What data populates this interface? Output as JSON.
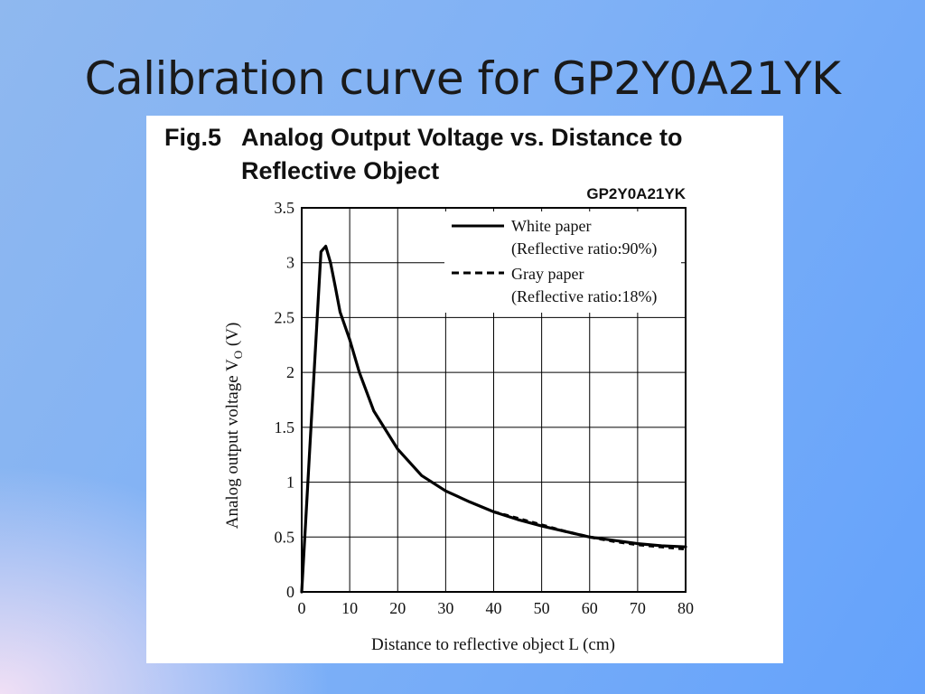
{
  "slide": {
    "title": "Calibration curve for GP2Y0A21YK"
  },
  "figure": {
    "fig_number": "Fig.5",
    "title_line1": "Analog Output Voltage vs. Distance to",
    "title_line2": "Reflective Object",
    "model": "GP2Y0A21YK"
  },
  "chart_data": {
    "type": "line",
    "title": "Fig.5 Analog Output Voltage vs. Distance to Reflective Object",
    "subtitle": "GP2Y0A21YK",
    "xlabel": "Distance to reflective object L (cm)",
    "ylabel": "Analog output voltage V",
    "ylabel_subscript": "O",
    "ylabel_unit": " (V)",
    "xlim": [
      0,
      80
    ],
    "ylim": [
      0,
      3.5
    ],
    "x_ticks": [
      0,
      10,
      20,
      30,
      40,
      50,
      60,
      70,
      80
    ],
    "y_ticks": [
      0,
      0.5,
      1,
      1.5,
      2,
      2.5,
      3,
      3.5
    ],
    "y_tick_labels": [
      "0",
      "0.5",
      "1",
      "1.5",
      "2",
      "2.5",
      "3",
      "3.5"
    ],
    "grid": true,
    "legend_position": "top-right",
    "series": [
      {
        "name": "White paper",
        "note": "(Reflective ratio:90%)",
        "style": "solid",
        "color": "#000000",
        "x": [
          0,
          2,
          4,
          5,
          6,
          7,
          8,
          10,
          12,
          15,
          20,
          25,
          30,
          35,
          40,
          45,
          50,
          55,
          60,
          65,
          70,
          75,
          80
        ],
        "y": [
          0,
          1.55,
          3.1,
          3.15,
          3.0,
          2.78,
          2.55,
          2.3,
          2.0,
          1.65,
          1.3,
          1.06,
          0.92,
          0.82,
          0.73,
          0.66,
          0.6,
          0.55,
          0.5,
          0.47,
          0.44,
          0.42,
          0.41
        ]
      },
      {
        "name": "Gray paper",
        "note": "(Reflective ratio:18%)",
        "style": "dashed",
        "color": "#000000",
        "x": [
          40,
          45,
          50,
          55,
          60,
          65,
          70,
          75,
          80
        ],
        "y": [
          0.73,
          0.67,
          0.61,
          0.55,
          0.5,
          0.46,
          0.43,
          0.41,
          0.39
        ]
      }
    ]
  }
}
